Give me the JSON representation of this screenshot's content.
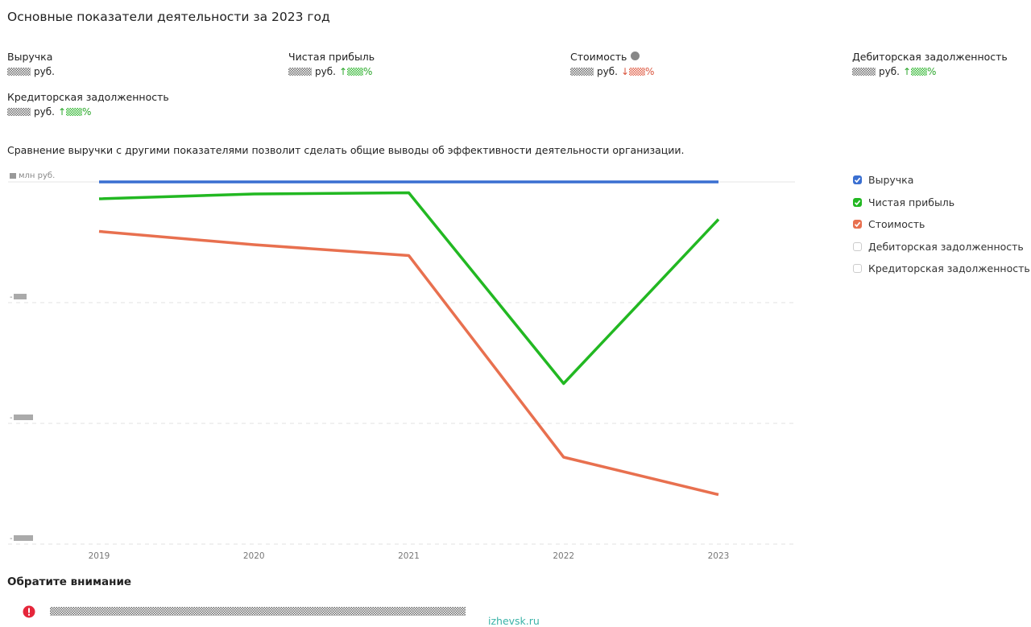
{
  "header": {
    "title": "Основные показатели деятельности за 2023 год"
  },
  "kpis": [
    {
      "label": "Выручка",
      "unit": "руб."
    },
    {
      "label": "Чистая прибыль",
      "unit": "руб.",
      "trend": "↑",
      "percent_sign": "%"
    },
    {
      "label": "Стоимость",
      "unit": "руб.",
      "trend": "↓",
      "percent_sign": "%"
    },
    {
      "label": "Дебиторская задолженность",
      "unit": "руб.",
      "trend": "↑",
      "percent_sign": "%"
    },
    {
      "label": "Кредиторская задолженность",
      "unit": "руб.",
      "trend": "↑",
      "percent_sign": "%"
    }
  ],
  "description": "Сравнение выручки с другими показателями позволит сделать общие выводы об эффективности деятельности организации.",
  "chart_data": {
    "type": "line",
    "y_unit": "млн руб.",
    "categories": [
      "2019",
      "2020",
      "2021",
      "2022",
      "2023"
    ],
    "ylim": [
      -3,
      0
    ],
    "yticks": [
      0,
      -1,
      -2,
      -3
    ],
    "grid": true,
    "legend": "right",
    "series": [
      {
        "name": "Выручка",
        "color": "#3a6fd1",
        "checked": true,
        "values": [
          0,
          0,
          0,
          0,
          0
        ]
      },
      {
        "name": "Чистая прибыль",
        "color": "#22b822",
        "checked": true,
        "values": [
          -0.14,
          -0.1,
          -0.09,
          -1.67,
          -0.31
        ]
      },
      {
        "name": "Стоимость",
        "color": "#e8704f",
        "checked": true,
        "values": [
          -0.41,
          -0.52,
          -0.61,
          -2.28,
          -2.59
        ]
      },
      {
        "name": "Дебиторская задолженность",
        "color": "#7a5bd0",
        "checked": false,
        "values": [
          null,
          null,
          null,
          null,
          null
        ]
      },
      {
        "name": "Кредиторская задолженность",
        "color": "#d0a02a",
        "checked": false,
        "values": [
          null,
          null,
          null,
          null,
          null
        ]
      }
    ]
  },
  "notice": {
    "title": "Обратите внимание"
  },
  "footer": {
    "watermark": "izhevsk.ru"
  }
}
